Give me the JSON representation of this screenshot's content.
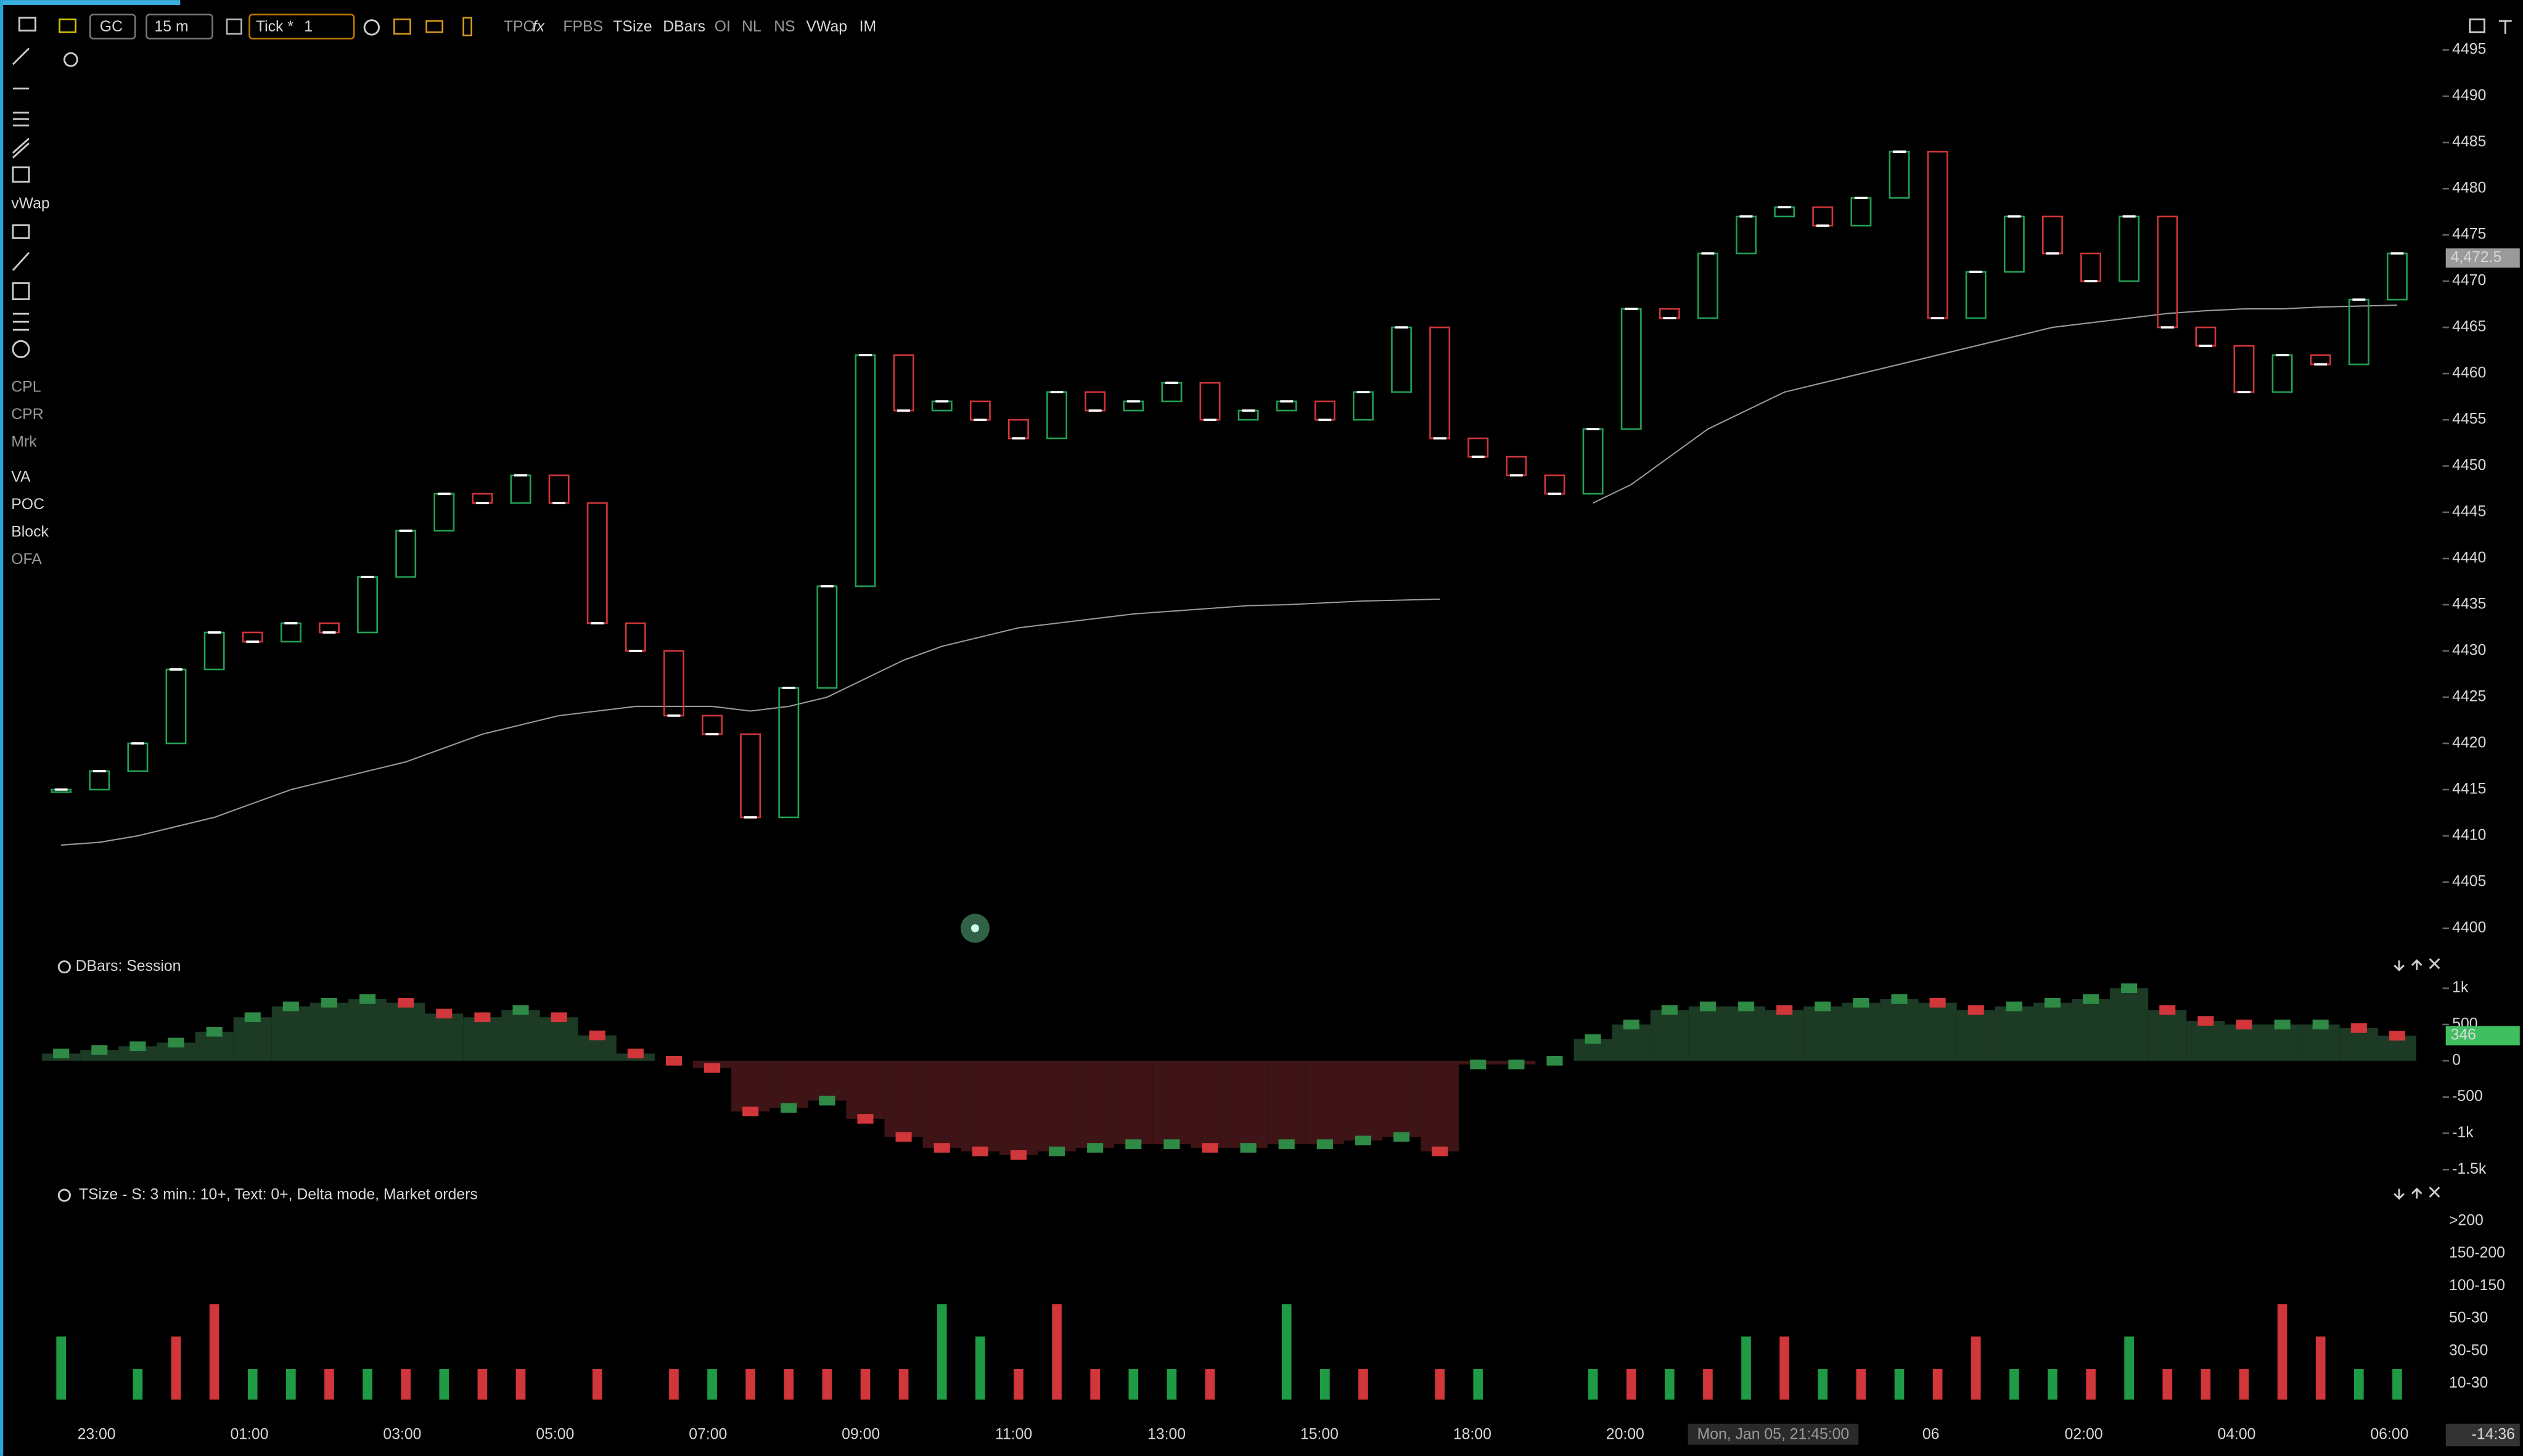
{
  "toolbar": {
    "symbol": "GC",
    "interval": "15 m",
    "tick_label": "Tick *",
    "tick_value": "1",
    "buttons": [
      "TPO",
      "FPBS",
      "TSize",
      "DBars",
      "OI",
      "NL",
      "NS",
      "VWap",
      "IM"
    ]
  },
  "sidebar": {
    "tools": [
      "vWap",
      "CPL",
      "CPR",
      "Mrk",
      "VA",
      "POC",
      "Block",
      "OFA"
    ]
  },
  "price_panel": {
    "ylim": [
      4398,
      4496
    ],
    "yticks": [
      4400,
      4405,
      4410,
      4415,
      4420,
      4425,
      4430,
      4435,
      4440,
      4445,
      4450,
      4455,
      4460,
      4465,
      4470,
      4475,
      4480,
      4485,
      4490,
      4495
    ],
    "last_price": {
      "value": 4472.5,
      "label": "4,472.5"
    },
    "close": [
      4415,
      4417,
      4420,
      4428,
      4432,
      4431,
      4433,
      4432,
      4438,
      4443,
      4447,
      4446,
      4449,
      4446,
      4433,
      4430,
      4423,
      4421,
      4412,
      4426,
      4437,
      4462,
      4456,
      4457,
      4455,
      4453,
      4458,
      4456,
      4457,
      4459,
      4455,
      4456,
      4457,
      4455,
      4458,
      4465,
      4453,
      4451,
      4449,
      4447,
      4454,
      4467,
      4466,
      4473,
      4477,
      4478,
      4476,
      4479,
      4484,
      4466,
      4471,
      4477,
      4473,
      4470,
      4477,
      4465,
      4463,
      4458,
      4462,
      4461,
      4468,
      4473
    ],
    "vwap": [
      4409,
      4409.3,
      4410,
      4411,
      4412,
      4413.5,
      4415,
      4416,
      4417,
      4418,
      4419.5,
      4421,
      4422,
      4423,
      4423.5,
      4424,
      4424,
      4424,
      4423.5,
      4424,
      4425,
      4427,
      4429,
      4430.5,
      4431.5,
      4432.5,
      4433,
      4433.5,
      4434,
      4434.3,
      4434.6,
      4434.9,
      4435,
      4435.2,
      4435.4,
      4435.5,
      4435.6,
      null,
      null,
      null,
      4446,
      4448,
      4451,
      4454,
      4456,
      4458,
      4459,
      4460,
      4461,
      4462,
      4463,
      4464,
      4465,
      4465.5,
      4466,
      4466.5,
      4466.8,
      4467,
      4467,
      4467.2,
      4467.3,
      4467.4
    ]
  },
  "dbars_panel": {
    "title": "DBars: Session",
    "ylim": [
      -1700,
      1250
    ],
    "yticks": [
      {
        "value": 1000,
        "label": "1k"
      },
      500,
      0,
      -500,
      {
        "value": -1000,
        "label": "-1k"
      },
      {
        "value": -1500,
        "label": "-1.5k"
      }
    ],
    "values": [
      100,
      150,
      200,
      250,
      400,
      600,
      750,
      800,
      850,
      800,
      650,
      600,
      700,
      600,
      350,
      100,
      0,
      -100,
      -700,
      -650,
      -550,
      -800,
      -1050,
      -1200,
      -1250,
      -1300,
      -1250,
      -1200,
      -1150,
      -1150,
      -1200,
      -1200,
      -1150,
      -1150,
      -1100,
      -1050,
      -1250,
      -50,
      -50,
      0,
      300,
      500,
      700,
      750,
      750,
      700,
      750,
      800,
      850,
      800,
      700,
      750,
      800,
      850,
      1000,
      700,
      550,
      500,
      500,
      500,
      450,
      346
    ]
  },
  "tsize_panel": {
    "title": "TSize - S: 3 min.: 10+, Text: 0+, Delta mode,  Market orders",
    "levels": [
      ">200",
      "150-200",
      "100-150",
      "50-30",
      "30-50",
      "10-30"
    ],
    "signals": [
      2,
      0,
      1,
      -2,
      -3,
      1,
      1,
      -1,
      1,
      -1,
      1,
      -1,
      -1,
      0,
      -1,
      0,
      -1,
      1,
      -1,
      -1,
      -1,
      -1,
      -1,
      3,
      2,
      -1,
      -3,
      -1,
      1,
      1,
      -1,
      0,
      3,
      1,
      -1,
      0,
      -1,
      1,
      0,
      0,
      1,
      -1,
      1,
      -1,
      2,
      -2,
      1,
      -1,
      1,
      -1,
      -2,
      1,
      1,
      -1,
      2,
      -1,
      -1,
      -1,
      -3,
      -2,
      1,
      1
    ]
  },
  "time_axis": {
    "labels": [
      "23:00",
      "01:00",
      "03:00",
      "05:00",
      "07:00",
      "09:00",
      "11:00",
      "13:00",
      "15:00",
      "18:00",
      "20:00",
      "06",
      "02:00",
      "04:00",
      "06:00"
    ],
    "cursor_label": "Mon, Jan 05, 21:45:00",
    "clock": "-14:36"
  }
}
